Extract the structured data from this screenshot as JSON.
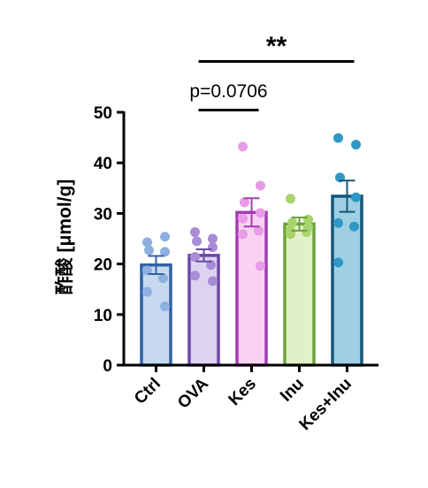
{
  "chart_data": {
    "type": "bar",
    "title": "",
    "xlabel": "",
    "ylabel": "酢酸 [μmol/g]",
    "ylim": [
      0,
      50
    ],
    "yticks": [
      0,
      10,
      20,
      30,
      40,
      50
    ],
    "categories": [
      "Ctrl",
      "OVA",
      "Kes",
      "Inu",
      "Kes+Inu"
    ],
    "grid": false,
    "legend": "none",
    "series": [
      {
        "values": [
          19.8,
          21.7,
          30.2,
          27.9,
          33.4
        ],
        "errors": [
          1.8,
          1.2,
          2.8,
          1.3,
          3.1
        ],
        "fill_colors": [
          "#c6d9ef",
          "#ddd2ef",
          "#f9d2f2",
          "#e2f0c8",
          "#9fcfe2"
        ],
        "edge_colors": [
          "#3262a4",
          "#6a48a6",
          "#a53db0",
          "#6fa23c",
          "#13587a"
        ],
        "point_colors": [
          "#8eb0e0",
          "#a88dd6",
          "#e89be6",
          "#a7d46c",
          "#2f97c4"
        ],
        "points": [
          [
            24.3,
            25.4,
            22.7,
            22.4,
            18.7,
            17.2,
            14.5,
            11.6
          ],
          [
            26.3,
            25.0,
            24.5,
            23.3,
            21.4,
            19.8,
            17.7,
            16.6
          ],
          [
            43.2,
            35.5,
            32.2,
            30.1,
            29.0,
            26.6,
            25.9,
            19.6
          ],
          [
            32.9,
            28.8,
            28.2,
            27.3,
            26.6,
            26.3,
            25.9
          ],
          [
            44.9,
            43.6,
            37.1,
            33.2,
            28.1,
            27.4,
            20.3
          ]
        ]
      }
    ],
    "annotations": [
      {
        "from": "OVA",
        "to": "Kes",
        "label": "p=0.0706"
      },
      {
        "from": "OVA",
        "to": "Kes+Inu",
        "label": "**"
      }
    ]
  }
}
